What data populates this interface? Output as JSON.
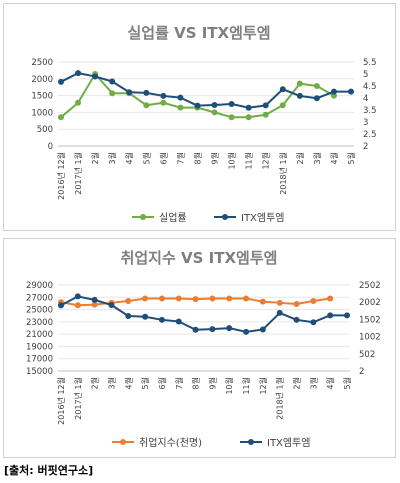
{
  "chart_data": [
    {
      "type": "line",
      "title": "실업률 VS ITX엠투엠",
      "x": [
        "2016년 12월",
        "2017년 1월",
        "2월",
        "3월",
        "4월",
        "5월",
        "6월",
        "7월",
        "8월",
        "9월",
        "10월",
        "11월",
        "12월",
        "2018년 1월",
        "2월",
        "3월",
        "4월",
        "5월"
      ],
      "y_left_lim": [
        0,
        2500
      ],
      "y_left_ticks": [
        "0",
        "500",
        "1000",
        "1500",
        "2000",
        "2500"
      ],
      "y_right_lim": [
        2,
        5.5
      ],
      "y_right_ticks": [
        "2",
        "2.5",
        "3",
        "3.5",
        "4",
        "4.5",
        "5",
        "5.5"
      ],
      "series": [
        {
          "name": "실업률",
          "axis": "right",
          "color": "#70ad47",
          "values": [
            3.2,
            3.8,
            5.0,
            4.2,
            4.2,
            3.7,
            3.8,
            3.6,
            3.6,
            3.4,
            3.2,
            3.2,
            3.3,
            3.7,
            4.6,
            4.5,
            4.1,
            null
          ]
        },
        {
          "name": "ITX엠투엠",
          "axis": "left",
          "color": "#1f4e79",
          "values": [
            1910,
            2170,
            2070,
            1920,
            1600,
            1580,
            1490,
            1440,
            1200,
            1220,
            1250,
            1140,
            1210,
            1690,
            1490,
            1420,
            1620,
            1620
          ]
        }
      ],
      "legend": "bottom"
    },
    {
      "type": "line",
      "title": "취업지수 VS ITX엠투엠",
      "x": [
        "2016년 12월",
        "2017년 1월",
        "2월",
        "3월",
        "4월",
        "5월",
        "6월",
        "7월",
        "8월",
        "9월",
        "10월",
        "11월",
        "12월",
        "2018년 1월",
        "2월",
        "3월",
        "4월",
        "5월"
      ],
      "y_left_lim": [
        15000,
        29000
      ],
      "y_left_ticks": [
        "15000",
        "17000",
        "19000",
        "21000",
        "23000",
        "25000",
        "27000",
        "29000"
      ],
      "y_right_lim": [
        2,
        2502
      ],
      "y_right_ticks": [
        "2",
        "502",
        "1002",
        "1502",
        "2002",
        "2502"
      ],
      "series": [
        {
          "name": "취업지수(천명)",
          "axis": "left",
          "color": "#ed7d31",
          "values": [
            26200,
            25700,
            25800,
            26100,
            26400,
            26800,
            26800,
            26800,
            26700,
            26800,
            26800,
            26800,
            26300,
            26100,
            25900,
            26400,
            26800,
            null
          ]
        },
        {
          "name": "ITX엠투엠",
          "axis": "right",
          "color": "#1f4e79",
          "values": [
            1910,
            2170,
            2070,
            1920,
            1600,
            1580,
            1490,
            1440,
            1200,
            1220,
            1250,
            1140,
            1210,
            1690,
            1490,
            1420,
            1620,
            1620
          ]
        }
      ],
      "legend": "bottom"
    }
  ],
  "source": "[출처: 버핏연구소]"
}
